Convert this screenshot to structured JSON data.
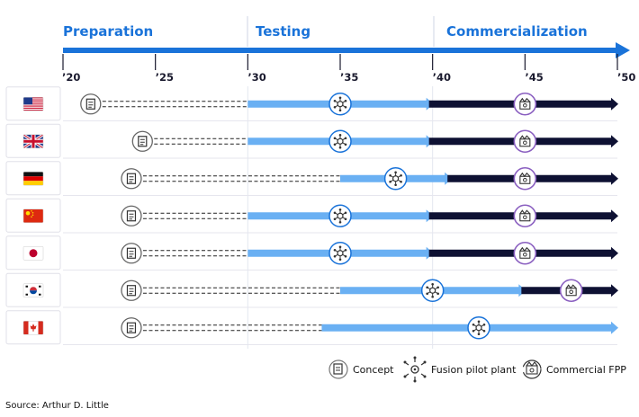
{
  "phases": [
    {
      "label": "Preparation",
      "start": 2020
    },
    {
      "label": "Testing",
      "start": 2030
    },
    {
      "label": "Commercialization",
      "start": 2040
    }
  ],
  "axis": {
    "ticks": [
      {
        "year": 2020,
        "label": "’20"
      },
      {
        "year": 2025,
        "label": "’25"
      },
      {
        "year": 2030,
        "label": "’30"
      },
      {
        "year": 2035,
        "label": "’35"
      },
      {
        "year": 2040,
        "label": "’40"
      },
      {
        "year": 2045,
        "label": "’45"
      },
      {
        "year": 2050,
        "label": "’50"
      }
    ]
  },
  "countries": [
    {
      "flag": "usa-flag-icon",
      "concept": 2021.5,
      "dash_end": 2030,
      "pilot": 2035,
      "light_end": 2040,
      "fpp": 2045
    },
    {
      "flag": "uk-flag-icon",
      "concept": 2024.3,
      "dash_end": 2030,
      "pilot": 2035,
      "light_end": 2040,
      "fpp": 2045
    },
    {
      "flag": "germany-flag-icon",
      "concept": 2023.7,
      "dash_end": 2035,
      "pilot": 2038,
      "light_end": 2041,
      "fpp": 2045
    },
    {
      "flag": "china-flag-icon",
      "concept": 2023.7,
      "dash_end": 2030,
      "pilot": 2035,
      "light_end": 2040,
      "fpp": 2045
    },
    {
      "flag": "japan-flag-icon",
      "concept": 2023.7,
      "dash_end": 2030,
      "pilot": 2035,
      "light_end": 2040,
      "fpp": 2045
    },
    {
      "flag": "south-korea-flag-icon",
      "concept": 2023.7,
      "dash_end": 2035,
      "pilot": 2040,
      "light_end": 2045,
      "fpp": 2047.5
    },
    {
      "flag": "canada-flag-icon",
      "concept": 2023.7,
      "dash_end": 2034,
      "pilot": 2042.5,
      "light_end": 2050,
      "fpp": null
    }
  ],
  "legend": [
    {
      "icon": "concept-icon",
      "label": "Concept"
    },
    {
      "icon": "fusion-pilot-plant-icon",
      "label": "Fusion pilot plant"
    },
    {
      "icon": "commercial-fpp-icon",
      "label": "Commercial FPP"
    }
  ],
  "source": "Source: Arthur D. Little",
  "colors": {
    "blue": "#1a73d9",
    "light_blue": "#6ab0f3",
    "navy": "#0e1133",
    "purple": "#8a5fc0",
    "row_border": "#e6e6ee"
  }
}
